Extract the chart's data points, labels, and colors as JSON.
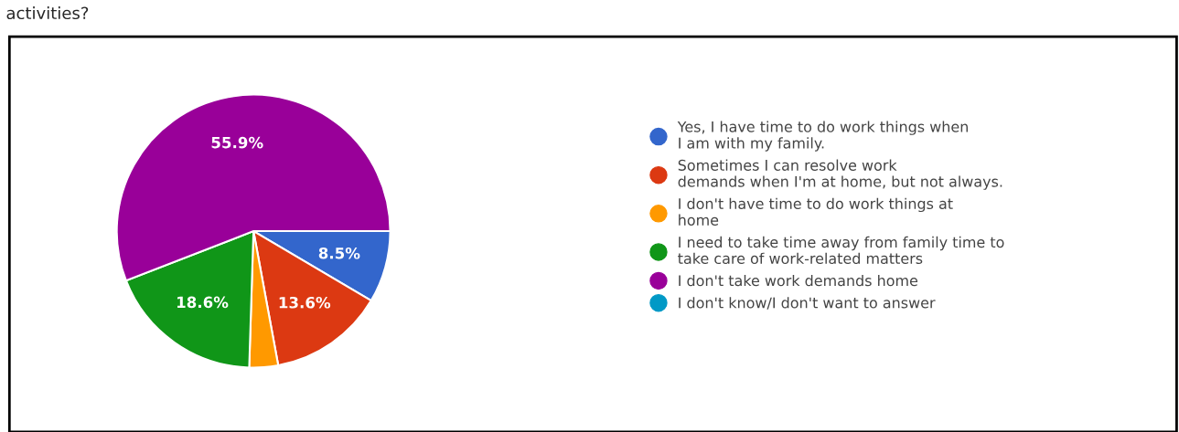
{
  "chart_data": {
    "type": "pie",
    "title": "activities?",
    "categories": [
      "Yes, I have time to do work things when\nI am with my family.",
      "Sometimes I can resolve work\ndemands when I'm at home, but not always.",
      "I don't have time to do work things at\nhome",
      "I need to take time away from family time to\ntake care of work-related matters",
      "I don't take work demands home",
      "I don't know/I don't want to answer"
    ],
    "values": [
      8.5,
      13.6,
      3.4,
      18.6,
      55.9,
      0
    ],
    "colors": [
      "#3366cc",
      "#dc3912",
      "#ff9900",
      "#109618",
      "#990099",
      "#0099c6"
    ],
    "value_labels": [
      "8.5%",
      "13.6%",
      null,
      "18.6%",
      "55.9%",
      null
    ],
    "legend": "right"
  }
}
